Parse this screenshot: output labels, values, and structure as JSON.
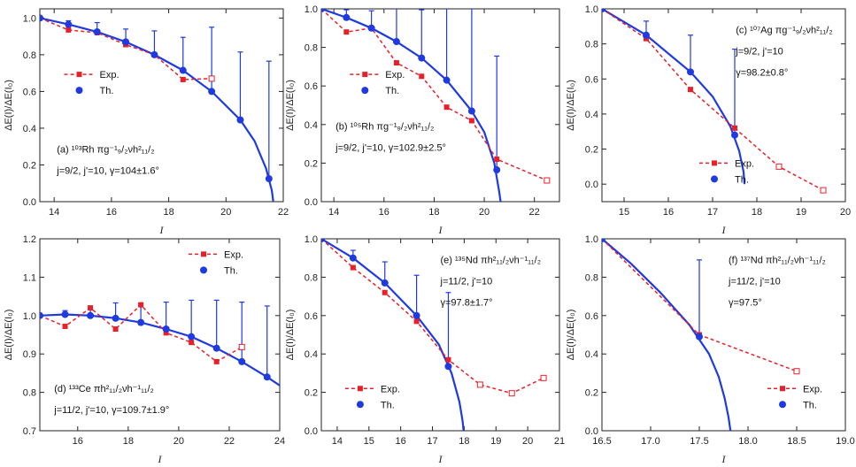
{
  "figure": {
    "y_axis_label": "ΔE(I)/ΔE(I₀)",
    "x_axis_label": "I"
  },
  "colors": {
    "exp": "#e8202a",
    "th": "#1f3ae0",
    "axis": "#222222"
  },
  "chart_data": [
    {
      "id": "a",
      "type": "line",
      "title": "(a) ¹⁰³Rh πg⁻¹9/2νh²11/2",
      "annotation_line1": "(a) ¹⁰³Rh πg⁻¹₉/₂νh²₁₁/₂",
      "annotation_line2": "j=9/2, j'=10, γ=104±1.6°",
      "xlim": [
        13.5,
        22
      ],
      "ylim": [
        0,
        1.05
      ],
      "xticks": [
        14,
        16,
        18,
        20,
        22
      ],
      "yticks": [
        0.0,
        0.2,
        0.4,
        0.6,
        0.8,
        1.0
      ],
      "xtick_labels": [
        "14",
        "16",
        "18",
        "20",
        "22"
      ],
      "ytick_labels": [
        "0.0",
        "0.2",
        "0.4",
        "0.6",
        "0.8",
        "1.0"
      ],
      "legend": {
        "exp": "Exp.",
        "th": "Th."
      },
      "exp_filled": {
        "x": [
          13.5,
          14.5,
          15.5,
          16.5,
          17.5,
          18.5
        ],
        "y": [
          1.0,
          0.935,
          0.92,
          0.855,
          0.8,
          0.665
        ]
      },
      "exp_open": {
        "x": [
          19.5
        ],
        "y": [
          0.67
        ]
      },
      "th_points": {
        "x": [
          13.5,
          14.5,
          15.5,
          16.5,
          17.5,
          18.5,
          19.5,
          20.5,
          21.5
        ],
        "y": [
          1.0,
          0.965,
          0.925,
          0.87,
          0.8,
          0.715,
          0.6,
          0.445,
          0.125
        ]
      },
      "th_err_upper": [
        0,
        0.02,
        0.05,
        0.07,
        0.13,
        0.18,
        0.35,
        0.37,
        0.64
      ],
      "th_curve": {
        "x": [
          13.5,
          14.5,
          15.5,
          16.5,
          17.5,
          18.5,
          19.5,
          20.5,
          21.0,
          21.4,
          21.6,
          21.65
        ],
        "y": [
          1.0,
          0.965,
          0.925,
          0.87,
          0.8,
          0.715,
          0.6,
          0.445,
          0.33,
          0.18,
          0.06,
          0.0
        ]
      }
    },
    {
      "id": "b",
      "type": "line",
      "title": "(b) ¹⁰⁵Rh",
      "annotation_line1": "(b) ¹⁰⁵Rh πg⁻¹₉/₂νh²₁₁/₂",
      "annotation_line2": "j=9/2, j'=10, γ=102.9±2.5°",
      "xlim": [
        13.5,
        23
      ],
      "ylim": [
        0,
        1.0
      ],
      "xticks": [
        14,
        16,
        18,
        20,
        22
      ],
      "yticks": [
        0.0,
        0.2,
        0.4,
        0.6,
        0.8,
        1.0
      ],
      "xtick_labels": [
        "14",
        "16",
        "18",
        "20",
        "22"
      ],
      "ytick_labels": [
        "0.0",
        "0.2",
        "0.4",
        "0.6",
        "0.8",
        "1.0"
      ],
      "legend": {
        "exp": "Exp.",
        "th": "Th."
      },
      "exp_filled": {
        "x": [
          13.5,
          14.5,
          15.5,
          16.5,
          17.5,
          18.5,
          19.5,
          20.5
        ],
        "y": [
          1.0,
          0.88,
          0.9,
          0.72,
          0.65,
          0.49,
          0.42,
          0.22
        ]
      },
      "exp_open": {
        "x": [
          22.5
        ],
        "y": [
          0.11
        ]
      },
      "th_points": {
        "x": [
          13.5,
          14.5,
          15.5,
          16.5,
          17.5,
          18.5,
          19.5,
          20.5
        ],
        "y": [
          1.0,
          0.955,
          0.9,
          0.83,
          0.745,
          0.63,
          0.47,
          0.165
        ]
      },
      "th_err_upper": [
        0,
        0.04,
        0.09,
        0.17,
        0.25,
        0.37,
        0.53,
        0.59
      ],
      "th_curve": {
        "x": [
          13.5,
          14.5,
          15.5,
          16.5,
          17.5,
          18.5,
          19.5,
          20.0,
          20.4,
          20.6,
          20.65
        ],
        "y": [
          1.0,
          0.955,
          0.9,
          0.83,
          0.745,
          0.63,
          0.47,
          0.36,
          0.2,
          0.05,
          0.0
        ]
      }
    },
    {
      "id": "c",
      "type": "line",
      "title": "(c) ¹⁰⁷Ag",
      "annotation_line1": "(c) ¹⁰⁷Ag πg⁻¹₉/₂νh²₁₁/₂",
      "annotation_line2": "j=9/2, j'=10",
      "annotation_line3": "γ=98.2±0.8°",
      "xlim": [
        14.5,
        20
      ],
      "ylim": [
        -0.1,
        1.0
      ],
      "xticks": [
        15,
        16,
        17,
        18,
        19,
        20
      ],
      "yticks": [
        0.0,
        0.2,
        0.4,
        0.6,
        0.8,
        1.0
      ],
      "xtick_labels": [
        "15",
        "16",
        "17",
        "18",
        "19",
        "20"
      ],
      "ytick_labels": [
        "0.0",
        "0.2",
        "0.4",
        "0.6",
        "0.8",
        "1.0"
      ],
      "legend": {
        "exp": "Exp.",
        "th": "Th."
      },
      "exp_filled": {
        "x": [
          14.5,
          15.5,
          16.5,
          17.5
        ],
        "y": [
          1.0,
          0.83,
          0.54,
          0.32
        ]
      },
      "exp_open": {
        "x": [
          18.5,
          19.5
        ],
        "y": [
          0.1,
          -0.035
        ]
      },
      "th_points": {
        "x": [
          14.5,
          15.5,
          16.5,
          17.5
        ],
        "y": [
          1.0,
          0.85,
          0.64,
          0.28
        ]
      },
      "th_err_upper": [
        0,
        0.08,
        0.21,
        0.49
      ],
      "th_curve": {
        "x": [
          14.5,
          15.5,
          16.5,
          17.0,
          17.4,
          17.6,
          17.7,
          17.72
        ],
        "y": [
          1.0,
          0.85,
          0.64,
          0.5,
          0.33,
          0.19,
          0.07,
          0.0
        ]
      }
    },
    {
      "id": "d",
      "type": "line",
      "title": "(d) ¹³³Ce",
      "annotation_line1": "(d) ¹³³Ce πh²₁₁/₂νh⁻¹₁₁/₂",
      "annotation_line2": "j=11/2, j'=10, γ=109.7±1.9°",
      "xlim": [
        14.5,
        24
      ],
      "ylim": [
        0.7,
        1.2
      ],
      "xticks": [
        16,
        18,
        20,
        22,
        24
      ],
      "yticks": [
        0.7,
        0.8,
        0.9,
        1.0,
        1.1,
        1.2
      ],
      "xtick_labels": [
        "16",
        "18",
        "20",
        "22",
        "24"
      ],
      "ytick_labels": [
        "0.7",
        "0.8",
        "0.9",
        "1.0",
        "1.1",
        "1.2"
      ],
      "legend": {
        "exp": "Exp.",
        "th": "Th."
      },
      "exp_filled": {
        "x": [
          14.5,
          15.5,
          16.5,
          17.5,
          18.5,
          19.5,
          20.5,
          21.5
        ],
        "y": [
          1.0,
          0.972,
          1.02,
          0.965,
          1.028,
          0.955,
          0.93,
          0.88
        ]
      },
      "exp_open": {
        "x": [
          22.5
        ],
        "y": [
          0.918
        ]
      },
      "th_points": {
        "x": [
          14.5,
          15.5,
          16.5,
          17.5,
          18.5,
          19.5,
          20.5,
          21.5,
          22.5,
          23.5
        ],
        "y": [
          1.0,
          1.003,
          1.0,
          0.993,
          0.982,
          0.965,
          0.945,
          0.915,
          0.88,
          0.84
        ]
      },
      "th_err_upper": [
        0,
        0.01,
        0.02,
        0.04,
        0.05,
        0.07,
        0.095,
        0.125,
        0.155,
        0.185
      ],
      "th_curve": {
        "x": [
          14.5,
          15.5,
          16.5,
          17.5,
          18.5,
          19.5,
          20.5,
          21.5,
          22.5,
          23.5,
          24.0
        ],
        "y": [
          1.0,
          1.003,
          1.0,
          0.993,
          0.982,
          0.965,
          0.945,
          0.915,
          0.88,
          0.84,
          0.818
        ]
      }
    },
    {
      "id": "e",
      "type": "line",
      "title": "(e) ¹³⁵Nd",
      "annotation_line1": "(e) ¹³⁵Nd πh²₁₁/₂νh⁻¹₁₁/₂",
      "annotation_line2": "j=11/2, j'=10",
      "annotation_line3": "γ=97.8±1.7°",
      "xlim": [
        13.5,
        21
      ],
      "ylim": [
        0,
        1.0
      ],
      "xticks": [
        14,
        15,
        16,
        17,
        18,
        19,
        20,
        21
      ],
      "yticks": [
        0.0,
        0.2,
        0.4,
        0.6,
        0.8,
        1.0
      ],
      "xtick_labels": [
        "14",
        "15",
        "16",
        "17",
        "18",
        "19",
        "20",
        "21"
      ],
      "ytick_labels": [
        "0.0",
        "0.2",
        "0.4",
        "0.6",
        "0.8",
        "1.0"
      ],
      "legend": {
        "exp": "Exp.",
        "th": "Th."
      },
      "exp_filled": {
        "x": [
          13.5,
          14.5,
          15.5,
          16.5,
          17.5
        ],
        "y": [
          1.0,
          0.85,
          0.72,
          0.57,
          0.37
        ]
      },
      "exp_open": {
        "x": [
          18.5,
          19.5,
          20.5
        ],
        "y": [
          0.24,
          0.195,
          0.275
        ]
      },
      "th_points": {
        "x": [
          13.5,
          14.5,
          15.5,
          16.5,
          17.5
        ],
        "y": [
          1.0,
          0.9,
          0.77,
          0.6,
          0.335
        ]
      },
      "th_err_upper": [
        0,
        0.04,
        0.11,
        0.21,
        0.385
      ],
      "th_curve": {
        "x": [
          13.5,
          14.5,
          15.5,
          16.5,
          17.2,
          17.6,
          17.85,
          17.95,
          17.98
        ],
        "y": [
          1.0,
          0.9,
          0.77,
          0.6,
          0.45,
          0.3,
          0.15,
          0.05,
          0.0
        ]
      }
    },
    {
      "id": "f",
      "type": "line",
      "title": "(f) ¹³⁷Nd",
      "annotation_line1": "(f) ¹³⁷Nd πh²₁₁/₂νh⁻¹₁₁/₂",
      "annotation_line2": "j=11/2, j'=10",
      "annotation_line3": "γ=97.5°",
      "xlim": [
        16.5,
        19.0
      ],
      "ylim": [
        0,
        1.0
      ],
      "xticks": [
        16.5,
        17.0,
        17.5,
        18.0,
        18.5,
        19.0
      ],
      "yticks": [
        0.0,
        0.2,
        0.4,
        0.6,
        0.8,
        1.0
      ],
      "xtick_labels": [
        "16.5",
        "17.0",
        "17.5",
        "18.0",
        "18.5",
        "19.0"
      ],
      "ytick_labels": [
        "0.0",
        "0.2",
        "0.4",
        "0.6",
        "0.8",
        "1.0"
      ],
      "legend": {
        "exp": "Exp.",
        "th": "Th."
      },
      "exp_filled": {
        "x": [
          16.5,
          17.5
        ],
        "y": [
          1.0,
          0.5
        ]
      },
      "exp_open": {
        "x": [
          18.5
        ],
        "y": [
          0.31
        ]
      },
      "th_points": {
        "x": [
          16.5,
          17.5
        ],
        "y": [
          1.0,
          0.49
        ]
      },
      "th_err_upper": [
        0,
        0.4
      ],
      "th_curve": {
        "x": [
          16.5,
          16.8,
          17.1,
          17.4,
          17.6,
          17.7,
          17.76,
          17.8,
          17.82
        ],
        "y": [
          1.0,
          0.87,
          0.72,
          0.55,
          0.4,
          0.28,
          0.17,
          0.07,
          0.0
        ]
      }
    }
  ]
}
